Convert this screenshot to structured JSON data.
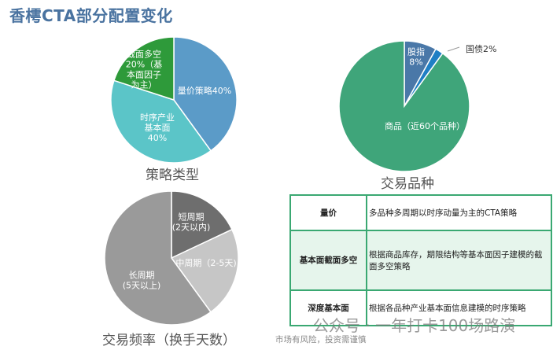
{
  "title": "香樗CTA部分配置变化",
  "chart_data": [
    {
      "type": "pie",
      "title": "策略类型",
      "slices": [
        {
          "label": "量价策略40%",
          "value": 40,
          "color": "#5b9bc8"
        },
        {
          "label": "时序产业\n基本面\n40%",
          "value": 40,
          "color": "#5bc5c8"
        },
        {
          "label": "截面多空\n20%（基\n本面因子\n为主）",
          "value": 20,
          "color": "#2e9a3a"
        }
      ]
    },
    {
      "type": "pie",
      "title": "交易品种",
      "slices": [
        {
          "label": "股指\n8%",
          "value": 8,
          "color": "#4a78a8"
        },
        {
          "label": "国债2%",
          "value": 2,
          "color": "#1f7fc4"
        },
        {
          "label": "商品（近60个品种）",
          "value": 90,
          "color": "#3fa57a"
        }
      ]
    },
    {
      "type": "pie",
      "title": "交易频率（换手天数）",
      "slices": [
        {
          "label": "短周期\n(2天以内)",
          "value": 18,
          "color": "#6e6e6e"
        },
        {
          "label": "中周期（2-5天)",
          "value": 22,
          "color": "#c6c6c6"
        },
        {
          "label": "长周期\n(5天以上)",
          "value": 60,
          "color": "#9a9a9a"
        }
      ]
    }
  ],
  "table": {
    "rows": [
      {
        "key": "量价",
        "desc": "多品种多周期以时序动量为主的CTA策略"
      },
      {
        "key": "基本面截面多空",
        "desc": "根据商品库存，期限结构等基本面因子建模的截面多空策略"
      },
      {
        "key": "深度基本面",
        "desc": "根据各品种产业基本面信息建模的时序策略"
      }
    ]
  },
  "watermark": "公众号 · 一年打卡100场路演",
  "risk_note": "市场有风险，投资需谨慎"
}
